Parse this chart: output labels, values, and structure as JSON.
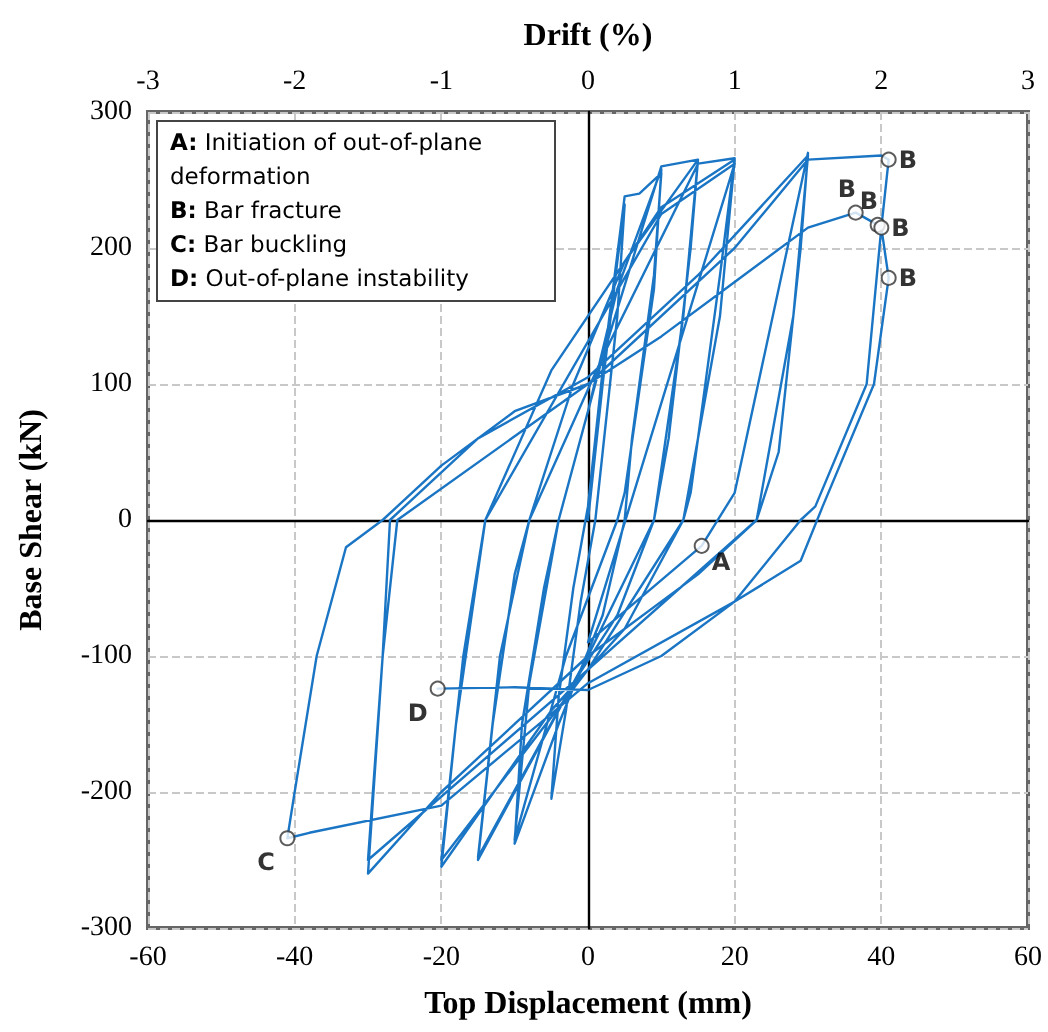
{
  "chart_data": {
    "type": "line",
    "xlabel": "Top Displacement (mm)",
    "ylabel": "Base Shear (kN)",
    "x2label": "Drift (%)",
    "xlim": [
      -60,
      60
    ],
    "xticks": [
      -60,
      -40,
      -20,
      0,
      20,
      40,
      60
    ],
    "ylim": [
      -300,
      300
    ],
    "yticks": [
      -300,
      -200,
      -100,
      0,
      100,
      200,
      300
    ],
    "x2lim": [
      -3,
      3
    ],
    "x2ticks": [
      -3,
      -2,
      -1,
      0,
      1,
      2,
      3
    ],
    "grid": true,
    "marker": "none",
    "line_style": "solid",
    "series": [
      {
        "type": "line",
        "color": "#1a75c4",
        "x": [
          0,
          2,
          4,
          5,
          4,
          2,
          1,
          -1,
          -3,
          -5,
          -4,
          -2,
          0,
          2,
          5,
          7,
          10,
          9,
          6,
          5,
          2,
          -4,
          -10,
          -9,
          -6,
          -4,
          0,
          4,
          10,
          9,
          5,
          4,
          -3,
          -10,
          -8,
          -4,
          2,
          10,
          15,
          14,
          11,
          9,
          4,
          -2,
          -10,
          -15,
          -13,
          -10,
          -8,
          -2,
          5,
          15,
          13,
          9,
          0,
          -15,
          -12,
          -8,
          2,
          15,
          20,
          18,
          14,
          13,
          5,
          -5,
          -20,
          -18,
          -14,
          -5,
          10,
          20,
          18,
          13,
          0,
          -20,
          -17,
          -14,
          10,
          20,
          0,
          15.5,
          20,
          30,
          29,
          26,
          23,
          15,
          0,
          -20,
          -30,
          -28,
          -27,
          -15,
          0,
          15,
          30,
          28,
          23,
          0,
          -30,
          -28,
          -26,
          0,
          20,
          30,
          40,
          41,
          40,
          38,
          31,
          29,
          20,
          0,
          -20,
          -38,
          -41,
          -40,
          -37,
          -33,
          -28,
          -20,
          -10,
          0,
          10,
          20,
          30,
          36.5,
          39.5,
          40,
          41,
          39,
          32,
          29,
          20,
          10,
          0,
          -10,
          -20.5
        ],
        "values": [
          0,
          100,
          190,
          232,
          150,
          50,
          0,
          -60,
          -140,
          -205,
          -130,
          -50,
          10,
          110,
          238,
          240,
          255,
          180,
          60,
          0,
          -70,
          -150,
          -238,
          -150,
          -50,
          0,
          80,
          170,
          258,
          170,
          20,
          0,
          -100,
          -235,
          -120,
          0,
          120,
          260,
          265,
          200,
          60,
          0,
          -70,
          -120,
          -200,
          -250,
          -150,
          -40,
          0,
          100,
          190,
          265,
          150,
          0,
          -100,
          -248,
          -100,
          0,
          120,
          262,
          266,
          180,
          20,
          0,
          -80,
          -140,
          -255,
          -150,
          0,
          110,
          230,
          265,
          150,
          0,
          -110,
          -250,
          -100,
          0,
          225,
          262,
          -90,
          -19,
          20,
          270,
          200,
          50,
          0,
          -40,
          -100,
          -200,
          -260,
          -100,
          0,
          60,
          105,
          180,
          268,
          150,
          0,
          -110,
          -250,
          -100,
          0,
          100,
          200,
          265,
          268,
          265,
          215,
          100,
          10,
          0,
          -60,
          -120,
          -210,
          -230,
          -234,
          -200,
          -100,
          -20,
          0,
          40,
          80,
          100,
          135,
          175,
          215,
          226,
          217,
          215,
          178,
          100,
          10,
          -30,
          -60,
          -100,
          -125,
          -123,
          -124
        ]
      },
      {
        "type": "scatter",
        "marker": "circle",
        "color": "#ffffff",
        "x": [
          15.5,
          41,
          36.5,
          39.5,
          40,
          41,
          -41,
          -20.5
        ],
        "values": [
          -19,
          265,
          226,
          217,
          215,
          178,
          -234,
          -124
        ]
      }
    ],
    "annotations": [
      "A: Initiation of out-of-plane deformation",
      "B: Bar fracture",
      "C: Bar buckling",
      "D: Out-of-plane instability",
      {
        "text": "A",
        "x": 15.5,
        "y": -19
      },
      {
        "text": "B",
        "x": 41,
        "y": 265
      },
      {
        "text": "B",
        "x": 36.5,
        "y": 226
      },
      {
        "text": "B",
        "x": 39.5,
        "y": 217
      },
      {
        "text": "B",
        "x": 40,
        "y": 215
      },
      {
        "text": "B",
        "x": 41,
        "y": 178
      },
      {
        "text": "C",
        "x": -41,
        "y": -234
      },
      {
        "text": "D",
        "x": -20.5,
        "y": -124
      }
    ]
  }
}
